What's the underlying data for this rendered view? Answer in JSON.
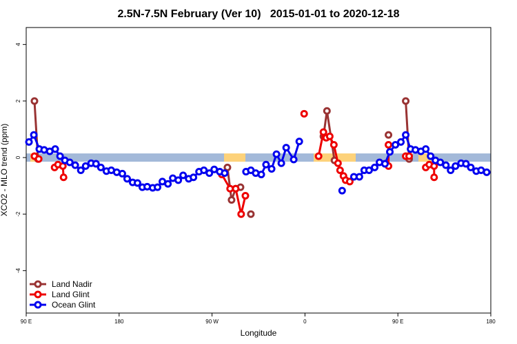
{
  "chart_data": {
    "type": "line",
    "title": "2.5N-7.5N February (Ver 10)   2015-01-01 to 2020-12-18",
    "xlabel": "Longitude",
    "ylabel": "XCO2 - MLO trend (ppm)",
    "xlim": [
      90,
      540
    ],
    "ylim": [
      -5.5,
      4.6
    ],
    "xticks": [
      {
        "value": 90,
        "label": "90 E"
      },
      180,
      {
        "value": 270,
        "label": "90 W"
      },
      {
        "value": 360,
        "label": "0"
      },
      {
        "value": 450,
        "label": "90 E"
      },
      {
        "value": 540,
        "label": "180"
      }
    ],
    "yticks": [
      -4,
      -2,
      0,
      2,
      4
    ],
    "legend": "bottomleft",
    "series": [
      {
        "name": "Land Nadir",
        "color": "#993333",
        "x": [
          98.0,
          101.4,
          null,
          284.9,
          288.9,
          292.9,
          297.6,
          null,
          307.6,
          null,
          377.9,
          381.3,
          388.6,
          null,
          440.9,
          null,
          457.6,
          460.9
        ],
        "values": [
          2.0,
          -0.05,
          null,
          -0.35,
          -1.5,
          -1.1,
          -1.05,
          null,
          -2.0,
          null,
          0.75,
          1.65,
          -0.1,
          null,
          0.8,
          null,
          2.0,
          -0.05
        ]
      },
      {
        "name": "Land Glint",
        "color": "#ee0000",
        "x": [
          98.0,
          102.1,
          null,
          117.5,
          120.8,
          125.5,
          126.2,
          null,
          279.5,
          287.5,
          292.9,
          298.2,
          302.3,
          null,
          359.2,
          null,
          373.2,
          377.9,
          380.6,
          384.0,
          388.0,
          392.0,
          394.0,
          397.3,
          399.4,
          403.4,
          null,
          440.9,
          440.9,
          null,
          457.6,
          460.9,
          null,
          477.0,
          480.4,
          485.1,
          485.1
        ],
        "values": [
          0.05,
          -0.05,
          null,
          -0.35,
          -0.25,
          -0.3,
          -0.7,
          null,
          -0.6,
          -1.1,
          -1.1,
          -2.0,
          -1.35,
          null,
          1.55,
          null,
          0.05,
          0.9,
          0.7,
          0.75,
          0.45,
          -0.2,
          -0.45,
          -0.65,
          -0.8,
          -0.85,
          null,
          0.45,
          -0.3,
          null,
          0.05,
          0.05,
          null,
          -0.35,
          -0.25,
          -0.3,
          -0.7
        ]
      },
      {
        "name": "Ocean Glint",
        "color": "#0000ee",
        "x": [
          92.7,
          97.4,
          102.7,
          107.4,
          112.8,
          118.1,
          122.8,
          127.5,
          132.2,
          137.5,
          142.9,
          147.6,
          152.9,
          157.6,
          162.3,
          167.7,
          172.4,
          177.7,
          183.1,
          187.8,
          193.1,
          197.8,
          202.5,
          207.2,
          212.5,
          217.2,
          221.9,
          227.3,
          232.0,
          237.3,
          242.0,
          247.4,
          252.0,
          257.4,
          262.1,
          267.4,
          272.1,
          277.5,
          282.2,
          null,
          302.9,
          307.6,
          312.3,
          317.7,
          322.3,
          327.7,
          332.4,
          337.1,
          341.8,
          349.1,
          354.5,
          null,
          396.0,
          null,
          407.4,
          412.7,
          417.4,
          422.1,
          427.5,
          432.2,
          437.5,
          442.2,
          447.6,
          452.9,
          457.6,
          462.3,
          467.0,
          472.3,
          477.0,
          481.7,
          486.4,
          491.1,
          496.5,
          501.1,
          505.8,
          511.2,
          515.9,
          520.6,
          525.9,
          530.6,
          536.0
        ],
        "values": [
          0.55,
          0.8,
          0.3,
          0.27,
          0.22,
          0.3,
          0.05,
          -0.1,
          -0.17,
          -0.27,
          -0.45,
          -0.3,
          -0.2,
          -0.22,
          -0.35,
          -0.48,
          -0.45,
          -0.52,
          -0.57,
          -0.75,
          -0.88,
          -0.9,
          -1.05,
          -1.03,
          -1.07,
          -1.05,
          -0.85,
          -0.93,
          -0.73,
          -0.8,
          -0.63,
          -0.75,
          -0.7,
          -0.5,
          -0.45,
          -0.55,
          -0.42,
          -0.5,
          -0.55,
          null,
          -0.5,
          -0.45,
          -0.55,
          -0.6,
          -0.25,
          -0.4,
          0.12,
          -0.2,
          0.35,
          -0.07,
          0.57,
          null,
          -1.17,
          null,
          -0.68,
          -0.68,
          -0.45,
          -0.45,
          -0.35,
          -0.17,
          -0.22,
          0.2,
          0.45,
          0.55,
          0.8,
          0.3,
          0.27,
          0.22,
          0.3,
          0.05,
          -0.1,
          -0.17,
          -0.27,
          -0.45,
          -0.3,
          -0.2,
          -0.22,
          -0.35,
          -0.48,
          -0.45,
          -0.52
        ]
      }
    ]
  }
}
